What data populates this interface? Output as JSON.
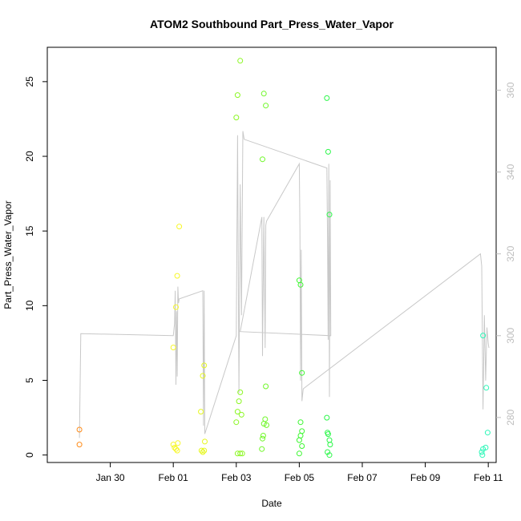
{
  "chart_data": {
    "type": "scatter",
    "title": "ATOM2 Southbound Part_Press_Water_Vapor",
    "xlabel": "Date",
    "ylabel": "Part_Press_Water_Vapor",
    "xlim": [
      "2017-01-28T00:00",
      "2017-02-11T06:00"
    ],
    "ylim": [
      -0.5,
      27.3
    ],
    "y2lim": [
      269,
      370.5
    ],
    "x_ticks": [
      {
        "value": "2017-01-30T00:00",
        "label": "Jan 30"
      },
      {
        "value": "2017-02-01T00:00",
        "label": "Feb 01"
      },
      {
        "value": "2017-02-03T00:00",
        "label": "Feb 03"
      },
      {
        "value": "2017-02-05T00:00",
        "label": "Feb 05"
      },
      {
        "value": "2017-02-07T00:00",
        "label": "Feb 07"
      },
      {
        "value": "2017-02-09T00:00",
        "label": "Feb 09"
      },
      {
        "value": "2017-02-11T00:00",
        "label": "Feb 11"
      }
    ],
    "y_ticks": [
      {
        "value": 0,
        "label": "0"
      },
      {
        "value": 5,
        "label": "5"
      },
      {
        "value": 10,
        "label": "10"
      },
      {
        "value": 15,
        "label": "15"
      },
      {
        "value": 20,
        "label": "20"
      },
      {
        "value": 25,
        "label": "25"
      }
    ],
    "y2_ticks": [
      {
        "value": 280,
        "label": "280"
      },
      {
        "value": 300,
        "label": "300"
      },
      {
        "value": 320,
        "label": "320"
      },
      {
        "value": 340,
        "label": "340"
      },
      {
        "value": 360,
        "label": "360"
      }
    ],
    "points": [
      {
        "x": "2017-01-29T00:30",
        "y": 1.7,
        "color": "#ff8c1a"
      },
      {
        "x": "2017-01-29T00:30",
        "y": 0.7,
        "color": "#ff8c1a"
      },
      {
        "x": "2017-02-01T00:00",
        "y": 7.2,
        "color": "#f7f72a"
      },
      {
        "x": "2017-02-01T02:00",
        "y": 9.9,
        "color": "#f7f72a"
      },
      {
        "x": "2017-02-01T03:00",
        "y": 12.0,
        "color": "#f7f72a"
      },
      {
        "x": "2017-02-01T04:30",
        "y": 15.3,
        "color": "#f7f72a"
      },
      {
        "x": "2017-02-01T00:00",
        "y": 0.7,
        "color": "#f7f72a"
      },
      {
        "x": "2017-02-01T01:00",
        "y": 0.5,
        "color": "#f7f72a"
      },
      {
        "x": "2017-02-01T02:00",
        "y": 0.4,
        "color": "#f7f72a"
      },
      {
        "x": "2017-02-01T03:00",
        "y": 0.3,
        "color": "#f7f72a"
      },
      {
        "x": "2017-02-01T03:30",
        "y": 0.8,
        "color": "#f7f72a"
      },
      {
        "x": "2017-02-01T21:00",
        "y": 2.9,
        "color": "#e6f720"
      },
      {
        "x": "2017-02-01T22:30",
        "y": 5.3,
        "color": "#e6f720"
      },
      {
        "x": "2017-02-01T23:30",
        "y": 6.0,
        "color": "#e6f720"
      },
      {
        "x": "2017-02-02T00:00",
        "y": 0.9,
        "color": "#e6f720"
      },
      {
        "x": "2017-02-01T21:30",
        "y": 0.3,
        "color": "#e6f720"
      },
      {
        "x": "2017-02-01T22:30",
        "y": 0.2,
        "color": "#e6f720"
      },
      {
        "x": "2017-02-01T23:30",
        "y": 0.3,
        "color": "#e6f720"
      },
      {
        "x": "2017-02-03T00:00",
        "y": 22.6,
        "color": "#8cf724"
      },
      {
        "x": "2017-02-03T01:00",
        "y": 24.1,
        "color": "#8cf724"
      },
      {
        "x": "2017-02-03T03:00",
        "y": 26.4,
        "color": "#8cf724"
      },
      {
        "x": "2017-02-03T00:00",
        "y": 2.2,
        "color": "#8cf724"
      },
      {
        "x": "2017-02-03T01:00",
        "y": 2.9,
        "color": "#8cf724"
      },
      {
        "x": "2017-02-03T02:00",
        "y": 3.6,
        "color": "#8cf724"
      },
      {
        "x": "2017-02-03T03:00",
        "y": 4.2,
        "color": "#8cf724"
      },
      {
        "x": "2017-02-03T04:00",
        "y": 2.7,
        "color": "#8cf724"
      },
      {
        "x": "2017-02-03T01:00",
        "y": 0.1,
        "color": "#8cf724"
      },
      {
        "x": "2017-02-03T03:00",
        "y": 0.1,
        "color": "#8cf724"
      },
      {
        "x": "2017-02-03T04:30",
        "y": 0.1,
        "color": "#8cf724"
      },
      {
        "x": "2017-02-03T20:00",
        "y": 19.8,
        "color": "#6ff728"
      },
      {
        "x": "2017-02-03T21:00",
        "y": 24.2,
        "color": "#6ff728"
      },
      {
        "x": "2017-02-03T22:30",
        "y": 23.4,
        "color": "#6ff728"
      },
      {
        "x": "2017-02-03T22:30",
        "y": 4.6,
        "color": "#6ff728"
      },
      {
        "x": "2017-02-03T20:00",
        "y": 1.1,
        "color": "#6ff728"
      },
      {
        "x": "2017-02-03T20:30",
        "y": 1.3,
        "color": "#6ff728"
      },
      {
        "x": "2017-02-03T21:00",
        "y": 2.1,
        "color": "#6ff728"
      },
      {
        "x": "2017-02-03T22:00",
        "y": 2.4,
        "color": "#6ff728"
      },
      {
        "x": "2017-02-03T23:00",
        "y": 2.0,
        "color": "#6ff728"
      },
      {
        "x": "2017-02-03T19:30",
        "y": 0.4,
        "color": "#6ff728"
      },
      {
        "x": "2017-02-05T00:00",
        "y": 11.7,
        "color": "#3cf730"
      },
      {
        "x": "2017-02-05T01:00",
        "y": 11.4,
        "color": "#3cf730"
      },
      {
        "x": "2017-02-05T02:00",
        "y": 5.5,
        "color": "#3cf730"
      },
      {
        "x": "2017-02-05T01:00",
        "y": 2.2,
        "color": "#3cf730"
      },
      {
        "x": "2017-02-05T02:00",
        "y": 1.6,
        "color": "#3cf730"
      },
      {
        "x": "2017-02-05T00:00",
        "y": 1.0,
        "color": "#3cf730"
      },
      {
        "x": "2017-02-05T01:00",
        "y": 1.3,
        "color": "#3cf730"
      },
      {
        "x": "2017-02-05T02:00",
        "y": 0.6,
        "color": "#3cf730"
      },
      {
        "x": "2017-02-05T00:00",
        "y": 0.1,
        "color": "#3cf730"
      },
      {
        "x": "2017-02-05T21:00",
        "y": 23.9,
        "color": "#2cf74a"
      },
      {
        "x": "2017-02-05T22:00",
        "y": 20.3,
        "color": "#2cf74a"
      },
      {
        "x": "2017-02-05T23:00",
        "y": 16.1,
        "color": "#2cf74a"
      },
      {
        "x": "2017-02-05T21:00",
        "y": 2.5,
        "color": "#2cf74a"
      },
      {
        "x": "2017-02-05T21:30",
        "y": 1.5,
        "color": "#2cf74a"
      },
      {
        "x": "2017-02-05T22:00",
        "y": 1.4,
        "color": "#2cf74a"
      },
      {
        "x": "2017-02-05T23:00",
        "y": 1.0,
        "color": "#2cf74a"
      },
      {
        "x": "2017-02-05T23:30",
        "y": 0.7,
        "color": "#2cf74a"
      },
      {
        "x": "2017-02-05T21:30",
        "y": 0.2,
        "color": "#2cf74a"
      },
      {
        "x": "2017-02-05T23:00",
        "y": 0.0,
        "color": "#2cf74a"
      },
      {
        "x": "2017-02-10T20:00",
        "y": 8.0,
        "color": "#2cf7b8"
      },
      {
        "x": "2017-02-10T22:30",
        "y": 4.5,
        "color": "#2cf7b8"
      },
      {
        "x": "2017-02-10T23:30",
        "y": 1.5,
        "color": "#2cf7b8"
      },
      {
        "x": "2017-02-10T19:00",
        "y": 0.2,
        "color": "#2cf7b8"
      },
      {
        "x": "2017-02-10T20:00",
        "y": 0.4,
        "color": "#2cf7b8"
      },
      {
        "x": "2017-02-10T22:00",
        "y": 0.5,
        "color": "#2cf7b8"
      },
      {
        "x": "2017-02-10T19:30",
        "y": 0.0,
        "color": "#2cf7b8"
      }
    ],
    "line_series": {
      "axis": "right",
      "color": "#c8c8c8",
      "points": [
        [
          "2017-01-29T00:30",
          275
        ],
        [
          "2017-01-29T01:30",
          300.5
        ],
        [
          "2017-02-01T00:00",
          300
        ],
        [
          "2017-02-01T01:00",
          303
        ],
        [
          "2017-02-01T01:30",
          311
        ],
        [
          "2017-02-01T02:00",
          288
        ],
        [
          "2017-02-01T02:30",
          306
        ],
        [
          "2017-02-01T03:00",
          290
        ],
        [
          "2017-02-01T03:30",
          312
        ],
        [
          "2017-02-01T04:00",
          308
        ],
        [
          "2017-02-01T04:30",
          309
        ],
        [
          "2017-02-01T22:30",
          311
        ],
        [
          "2017-02-01T23:00",
          278
        ],
        [
          "2017-02-01T23:30",
          311
        ],
        [
          "2017-02-02T00:00",
          276
        ],
        [
          "2017-02-03T00:00",
          300
        ],
        [
          "2017-02-03T01:00",
          349
        ],
        [
          "2017-02-03T02:00",
          286
        ],
        [
          "2017-02-03T03:00",
          337
        ],
        [
          "2017-02-03T04:00",
          305
        ],
        [
          "2017-02-03T05:00",
          350
        ],
        [
          "2017-02-03T06:00",
          348
        ],
        [
          "2017-02-05T21:00",
          341
        ],
        [
          "2017-02-05T21:30",
          324
        ],
        [
          "2017-02-05T22:00",
          299
        ],
        [
          "2017-02-05T22:30",
          342
        ],
        [
          "2017-02-05T23:00",
          285
        ],
        [
          "2017-02-05T23:30",
          338
        ],
        [
          "2017-02-06T00:00",
          300
        ],
        [
          "2017-02-03T03:00",
          301
        ],
        [
          "2017-02-03T19:30",
          329
        ],
        [
          "2017-02-03T20:00",
          295
        ],
        [
          "2017-02-03T21:00",
          329
        ],
        [
          "2017-02-03T22:00",
          297
        ],
        [
          "2017-02-03T22:30",
          327
        ],
        [
          "2017-02-03T23:00",
          328
        ],
        [
          "2017-02-05T00:00",
          342
        ],
        [
          "2017-02-05T00:30",
          326
        ],
        [
          "2017-02-05T01:00",
          289
        ],
        [
          "2017-02-05T01:30",
          321
        ],
        [
          "2017-02-05T02:00",
          284
        ],
        [
          "2017-02-05T03:00",
          287
        ],
        [
          "2017-02-10T18:00",
          320
        ],
        [
          "2017-02-10T19:00",
          317
        ],
        [
          "2017-02-10T20:00",
          282
        ],
        [
          "2017-02-10T21:00",
          305
        ],
        [
          "2017-02-10T22:00",
          289
        ],
        [
          "2017-02-10T23:00",
          302
        ],
        [
          "2017-02-11T00:00",
          298
        ],
        [
          "2017-02-11T00:30",
          297
        ]
      ]
    }
  }
}
